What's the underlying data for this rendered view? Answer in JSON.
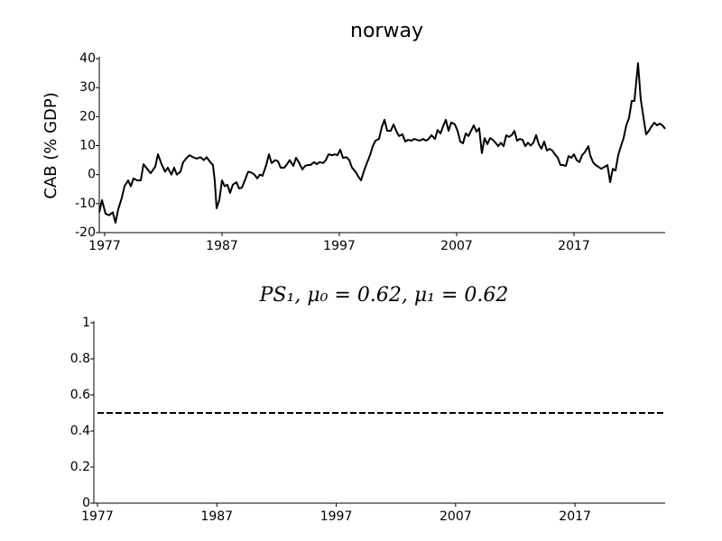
{
  "chart_data": [
    {
      "type": "line",
      "title": "norway",
      "ylabel": "CAB (% GDP)",
      "color": "#000000",
      "xlim": [
        1976.54,
        2024.77
      ],
      "xticks": [
        1977,
        1987,
        1997,
        2007,
        2017
      ],
      "ylim": [
        -20,
        40
      ],
      "yticks": [
        -20,
        -10,
        0,
        10,
        20,
        30,
        40
      ],
      "x": [
        1976.54,
        1976.77,
        1977.08,
        1977.38,
        1977.69,
        1977.92,
        1978.15,
        1978.46,
        1978.69,
        1979.0,
        1979.23,
        1979.46,
        1979.77,
        1980.08,
        1980.31,
        1980.62,
        1980.92,
        1981.31,
        1981.54,
        1981.85,
        1982.15,
        1982.38,
        1982.69,
        1982.92,
        1983.15,
        1983.46,
        1983.69,
        1984.0,
        1984.23,
        1984.54,
        1984.85,
        1985.15,
        1985.46,
        1985.69,
        1986.0,
        1986.23,
        1986.38,
        1986.54,
        1986.77,
        1987.0,
        1987.23,
        1987.46,
        1987.69,
        1987.92,
        1988.23,
        1988.46,
        1988.69,
        1988.92,
        1989.23,
        1989.46,
        1989.77,
        1990.0,
        1990.23,
        1990.46,
        1990.77,
        1991.0,
        1991.23,
        1991.54,
        1991.77,
        1992.0,
        1992.31,
        1992.54,
        1992.77,
        1993.08,
        1993.31,
        1993.54,
        1993.85,
        1994.08,
        1994.31,
        1994.54,
        1994.85,
        1995.08,
        1995.31,
        1995.62,
        1995.85,
        1996.08,
        1996.38,
        1996.62,
        1996.85,
        1997.08,
        1997.31,
        1997.62,
        1997.85,
        1998.08,
        1998.38,
        1998.62,
        1998.85,
        1999.08,
        1999.38,
        1999.62,
        1999.85,
        2000.08,
        2000.38,
        2000.62,
        2000.85,
        2001.08,
        2001.38,
        2001.62,
        2001.85,
        2002.08,
        2002.38,
        2002.62,
        2002.85,
        2003.15,
        2003.38,
        2003.62,
        2003.85,
        2004.15,
        2004.38,
        2004.62,
        2004.85,
        2005.15,
        2005.38,
        2005.62,
        2005.85,
        2006.08,
        2006.31,
        2006.54,
        2006.85,
        2007.08,
        2007.31,
        2007.54,
        2007.77,
        2008.0,
        2008.23,
        2008.46,
        2008.69,
        2008.92,
        2009.15,
        2009.38,
        2009.62,
        2009.85,
        2010.08,
        2010.31,
        2010.54,
        2010.77,
        2011.0,
        2011.23,
        2011.46,
        2011.69,
        2011.92,
        2012.15,
        2012.38,
        2012.62,
        2012.85,
        2013.08,
        2013.31,
        2013.54,
        2013.77,
        2014.0,
        2014.23,
        2014.46,
        2014.69,
        2014.92,
        2015.15,
        2015.38,
        2015.62,
        2015.85,
        2016.08,
        2016.31,
        2016.54,
        2016.77,
        2017.0,
        2017.23,
        2017.46,
        2017.69,
        2017.92,
        2018.23,
        2018.38,
        2018.62,
        2018.85,
        2019.08,
        2019.31,
        2019.62,
        2019.85,
        2020.08,
        2020.31,
        2020.54,
        2020.77,
        2021.0,
        2021.23,
        2021.46,
        2021.69,
        2021.92,
        2022.15,
        2022.46,
        2022.69,
        2022.92,
        2023.15,
        2023.38,
        2023.62,
        2023.85,
        2024.08,
        2024.31,
        2024.54,
        2024.77
      ],
      "values": [
        -13,
        -8.8,
        -13.5,
        -14,
        -13,
        -16.6,
        -12,
        -8,
        -4,
        -2,
        -4,
        -1.3,
        -2,
        -2,
        3.6,
        2,
        0.5,
        2.7,
        7,
        3.6,
        1,
        2.4,
        0,
        2.4,
        0,
        1,
        4.3,
        5.8,
        6.7,
        6,
        5.5,
        6,
        5,
        6,
        4.3,
        3.3,
        -2,
        -11.6,
        -8.8,
        -2,
        -4,
        -3.5,
        -6.3,
        -3.5,
        -2.6,
        -4.8,
        -4.5,
        -2.3,
        1,
        0.8,
        0,
        -1.3,
        0,
        -0.4,
        3.3,
        7,
        4,
        5,
        4.6,
        2.4,
        2.4,
        3.6,
        5,
        3,
        5.8,
        4.3,
        1.8,
        3,
        3.3,
        3.3,
        4.3,
        3.6,
        4.3,
        4,
        5,
        7,
        6.7,
        7,
        6.7,
        8.6,
        5.8,
        6,
        5,
        2.4,
        1,
        -0.7,
        -2,
        1,
        4.3,
        6.7,
        9.8,
        11.7,
        12.3,
        16.4,
        18.9,
        15.1,
        15.1,
        17.3,
        15.1,
        13.3,
        13.9,
        11.4,
        12,
        11.7,
        12.3,
        12,
        11.7,
        12.3,
        11.7,
        12.3,
        13.6,
        12.3,
        15.4,
        14.2,
        16.7,
        18.9,
        15.1,
        18,
        17.3,
        15.1,
        11.4,
        10.8,
        14.2,
        13.3,
        15.1,
        17,
        14.8,
        16,
        7.4,
        12.6,
        10.5,
        12.6,
        12,
        11,
        9.8,
        11,
        9.8,
        13.6,
        13,
        13.6,
        15.1,
        11.7,
        12.3,
        12,
        9.8,
        11,
        10,
        11,
        13.6,
        10.5,
        8.9,
        11.4,
        8.3,
        8.9,
        8.3,
        7,
        5.8,
        3.3,
        3.3,
        3,
        6.4,
        5.8,
        7,
        5,
        4.3,
        6.7,
        7.7,
        9.8,
        6.7,
        4.3,
        3.3,
        2.7,
        2,
        2.7,
        3.3,
        -2.6,
        2,
        1.4,
        6.7,
        9.8,
        12.6,
        17,
        19.5,
        25.4,
        25.4,
        38.4,
        26,
        19.8,
        13.9,
        15.1,
        16.7,
        17.9,
        17,
        17.6,
        17,
        15.8
      ]
    },
    {
      "type": "line",
      "title": "PS₁, μ₀ = 0.62, μ₁ = 0.62",
      "color": "#000000",
      "linestyle": "dashed",
      "xlim": [
        1976.7,
        2024.55
      ],
      "xticks": [
        1977,
        1987,
        1997,
        2007,
        2017
      ],
      "ylim": [
        0,
        1
      ],
      "yticks": [
        0,
        0.2,
        0.4,
        0.6,
        0.8,
        1
      ],
      "x": [
        1977,
        2024.55
      ],
      "values": [
        0.5,
        0.5
      ]
    }
  ]
}
